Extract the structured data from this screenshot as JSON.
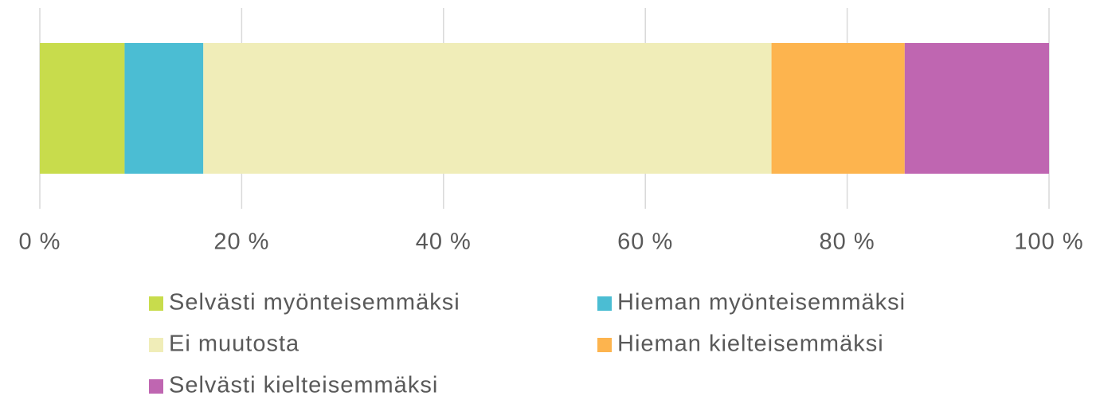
{
  "chart_data": {
    "type": "bar",
    "orientation": "horizontal",
    "stacked": true,
    "series": [
      {
        "name": "Selvästi myönteisemmäksi",
        "color": "#c8dc4c",
        "values": [
          8.4
        ]
      },
      {
        "name": "Hieman myönteisemmäksi",
        "color": "#4bbdd3",
        "values": [
          7.8
        ]
      },
      {
        "name": "Ei muutosta",
        "color": "#f0edb8",
        "values": [
          56.3
        ]
      },
      {
        "name": "Hieman kielteisemmäksi",
        "color": "#fdb44e",
        "values": [
          13.2
        ]
      },
      {
        "name": "Selvästi kielteisemmäksi",
        "color": "#bf66b1",
        "values": [
          14.3
        ]
      }
    ],
    "xlim": [
      0,
      100
    ],
    "xticks": [
      {
        "value": 0,
        "label": "0 %"
      },
      {
        "value": 20,
        "label": "20 %"
      },
      {
        "value": 40,
        "label": "40 %"
      },
      {
        "value": 60,
        "label": "60 %"
      },
      {
        "value": 80,
        "label": "80 %"
      },
      {
        "value": 100,
        "label": "100 %"
      }
    ],
    "grid": true,
    "legend": "bottom"
  }
}
